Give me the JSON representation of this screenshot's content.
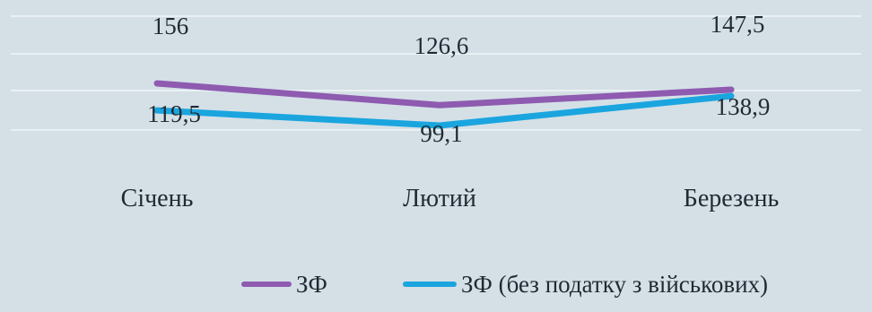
{
  "chart_data": {
    "type": "line",
    "categories": [
      "Січень",
      "Лютий",
      "Березень"
    ],
    "series": [
      {
        "name": "ЗФ",
        "values": [
          156,
          126.6,
          147.5
        ],
        "labels": [
          "156",
          "126,6",
          "147,5"
        ],
        "color": "#8e5bb0"
      },
      {
        "name": "ЗФ (без податку з військових)",
        "values": [
          119.5,
          99.1,
          138.9
        ],
        "labels": [
          "119,5",
          "99,1",
          "138,9"
        ],
        "color": "#1aa5df"
      }
    ],
    "legend_position": "bottom",
    "grid": true,
    "background": "#d4e0e6",
    "gridline_color": "#e9f0f3"
  }
}
